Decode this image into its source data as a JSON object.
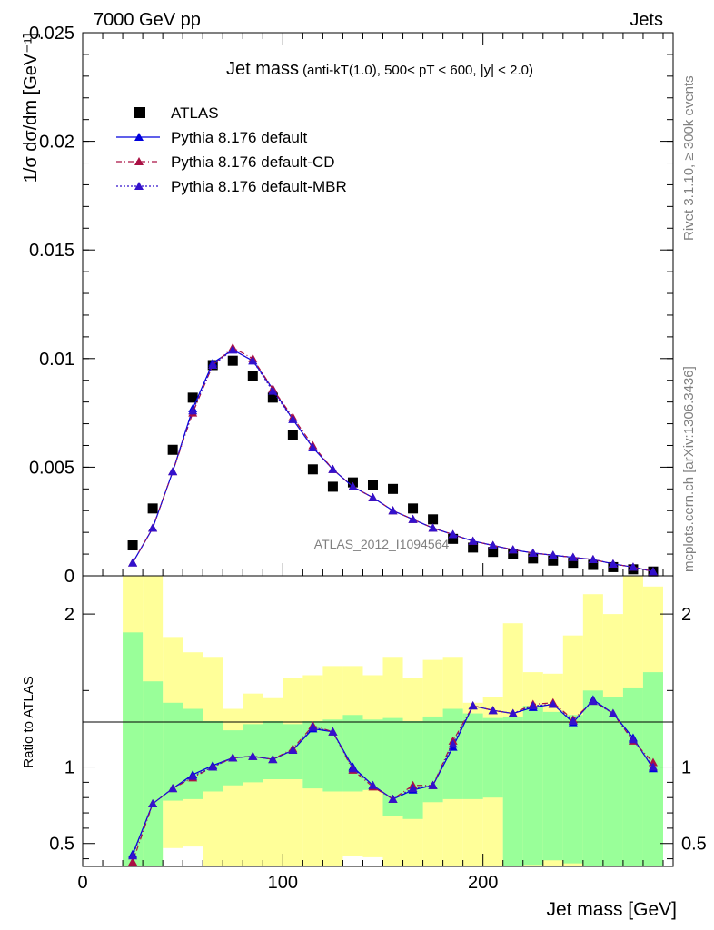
{
  "header": {
    "left": "7000 GeV pp",
    "right": "Jets"
  },
  "side_labels": {
    "rivet": "Rivet 3.1.10, ≥ 300k events",
    "mcplots": "mcplots.cern.ch [arXiv:1306.3436]"
  },
  "watermark": "ATLAS_2012_I1094564",
  "chart_data": [
    {
      "type": "scatter",
      "title": "Jet mass",
      "title_detail": "(anti-kT(1.0), 500< pT < 600, |y| < 2.0)",
      "xlabel": "Jet mass [GeV]",
      "ylabel": "1/σ dσ/dm [GeV⁻¹]",
      "xlim": [
        0,
        295
      ],
      "ylim": [
        0,
        0.025
      ],
      "yticks": [
        0,
        0.005,
        0.01,
        0.015,
        0.02,
        0.025
      ],
      "ytick_labels": [
        "0",
        "0.005",
        "0.01",
        "0.015",
        "0.02",
        "0.025"
      ],
      "legend_position": "top-left",
      "x": [
        25,
        35,
        45,
        55,
        65,
        75,
        85,
        95,
        105,
        115,
        125,
        135,
        145,
        155,
        165,
        175,
        185,
        195,
        205,
        215,
        225,
        235,
        245,
        255,
        265,
        275,
        285
      ],
      "series": [
        {
          "name": "ATLAS",
          "color": "#000000",
          "marker": "square",
          "values": [
            0.0014,
            0.0031,
            0.0058,
            0.0082,
            0.0097,
            0.0099,
            0.0092,
            0.0082,
            0.0065,
            0.0049,
            0.0041,
            0.0043,
            0.0042,
            0.004,
            0.0031,
            0.0026,
            0.0017,
            0.0013,
            0.0011,
            0.001,
            0.0008,
            0.0007,
            0.0006,
            0.0005,
            0.0004,
            0.0003,
            0.0002
          ]
        },
        {
          "name": "Pythia 8.176 default",
          "color": "#0000dd",
          "marker": "triangle",
          "dash": "solid",
          "values": [
            0.0006,
            0.0022,
            0.0048,
            0.0077,
            0.0098,
            0.0104,
            0.0099,
            0.0086,
            0.0072,
            0.0059,
            0.0049,
            0.0041,
            0.0036,
            0.003,
            0.0026,
            0.0022,
            0.0019,
            0.0016,
            0.0014,
            0.0012,
            0.00105,
            0.00095,
            0.00085,
            0.00075,
            0.00055,
            0.0004,
            0.0002
          ]
        },
        {
          "name": "Pythia 8.176 default-CD",
          "color": "#aa1144",
          "marker": "triangle",
          "dash": "dashdot",
          "values": [
            0.0006,
            0.0022,
            0.0048,
            0.0075,
            0.0097,
            0.0105,
            0.01,
            0.0086,
            0.0073,
            0.006,
            0.0049,
            0.0041,
            0.0036,
            0.003,
            0.0026,
            0.0022,
            0.0019,
            0.0016,
            0.0014,
            0.0012,
            0.00105,
            0.00095,
            0.00085,
            0.00075,
            0.00055,
            0.0004,
            0.0002
          ]
        },
        {
          "name": "Pythia 8.176 default-MBR",
          "color": "#3311cc",
          "marker": "triangle",
          "dash": "dotted",
          "values": [
            0.0006,
            0.0022,
            0.0048,
            0.0076,
            0.0097,
            0.0104,
            0.0099,
            0.0085,
            0.0072,
            0.0059,
            0.0049,
            0.0041,
            0.0036,
            0.003,
            0.0026,
            0.0022,
            0.0019,
            0.0016,
            0.0014,
            0.0012,
            0.00105,
            0.00095,
            0.00085,
            0.00075,
            0.00055,
            0.0004,
            0.0002
          ]
        }
      ]
    },
    {
      "type": "line",
      "xlabel": "Jet mass [GeV]",
      "ylabel": "Ratio to ATLAS",
      "xlim": [
        0,
        295
      ],
      "ylim": [
        0.35,
        2.25
      ],
      "xticks": [
        0,
        100,
        200
      ],
      "xtick_labels": [
        "0",
        "100",
        "200"
      ],
      "yticks": [
        0.5,
        1,
        2
      ],
      "ytick_labels": [
        "0.5",
        "1",
        "2"
      ],
      "bin_edges": [
        20,
        30,
        40,
        50,
        60,
        70,
        80,
        90,
        100,
        110,
        120,
        130,
        140,
        150,
        160,
        170,
        180,
        190,
        200,
        210,
        220,
        230,
        240,
        250,
        260,
        270,
        280,
        290
      ],
      "band_inner": {
        "color": "#99ff99",
        "lo": [
          0.35,
          0.35,
          0.78,
          0.79,
          0.84,
          0.88,
          0.9,
          0.92,
          0.92,
          0.86,
          0.84,
          0.84,
          0.85,
          0.68,
          0.66,
          0.77,
          0.79,
          0.79,
          0.8,
          0.35,
          0.36,
          0.39,
          0.37,
          0.35,
          0.35,
          0.35,
          0.35
        ],
        "hi": [
          1.88,
          1.56,
          1.42,
          1.38,
          1.3,
          1.24,
          1.28,
          1.3,
          1.28,
          1.3,
          1.31,
          1.34,
          1.31,
          1.32,
          1.3,
          1.33,
          1.38,
          1.35,
          1.32,
          1.33,
          1.4,
          1.36,
          1.34,
          1.5,
          1.46,
          1.52,
          1.62
        ]
      },
      "band_outer": {
        "color": "#ffff99",
        "lo": [
          0.35,
          0.35,
          0.47,
          0.48,
          0.35,
          0.35,
          0.35,
          0.35,
          0.35,
          0.35,
          0.35,
          0.42,
          0.41,
          0.35,
          0.35,
          0.35,
          0.35,
          0.35,
          0.35,
          0.35,
          0.35,
          0.35,
          0.35,
          0.35,
          0.35,
          0.35,
          0.35
        ],
        "hi": [
          2.25,
          2.25,
          1.85,
          1.75,
          1.72,
          1.38,
          1.48,
          1.45,
          1.58,
          1.6,
          1.66,
          1.66,
          1.6,
          1.72,
          1.58,
          1.7,
          1.72,
          1.42,
          1.46,
          1.94,
          1.62,
          1.61,
          1.86,
          2.13,
          2.0,
          2.25,
          2.18
        ]
      },
      "reference": 1,
      "series": [
        {
          "name": "Pythia 8.176 default",
          "color": "#0000dd",
          "marker": "triangle",
          "dash": "solid",
          "values": [
            0.43,
            0.76,
            0.86,
            0.95,
            1.01,
            1.06,
            1.07,
            1.05,
            1.11,
            1.25,
            1.23,
            1.0,
            0.88,
            0.79,
            0.85,
            0.88,
            1.13,
            1.4,
            1.37,
            1.35,
            1.39,
            1.41,
            1.29,
            1.44,
            1.35,
            1.19,
            0.99
          ]
        },
        {
          "name": "Pythia 8.176 default-CD",
          "color": "#aa1144",
          "marker": "triangle",
          "dash": "dashdot",
          "values": [
            0.38,
            0.76,
            0.86,
            0.93,
            1.0,
            1.06,
            1.07,
            1.05,
            1.12,
            1.27,
            1.23,
            0.98,
            0.87,
            0.79,
            0.88,
            0.88,
            1.17,
            1.4,
            1.37,
            1.35,
            1.41,
            1.42,
            1.31,
            1.43,
            1.35,
            1.17,
            1.03
          ]
        },
        {
          "name": "Pythia 8.176 default-MBR",
          "color": "#3311cc",
          "marker": "triangle",
          "dash": "dotted",
          "values": [
            0.42,
            0.76,
            0.86,
            0.94,
            1.0,
            1.06,
            1.07,
            1.05,
            1.11,
            1.26,
            1.23,
            0.99,
            0.88,
            0.79,
            0.86,
            0.88,
            1.15,
            1.4,
            1.37,
            1.35,
            1.4,
            1.41,
            1.3,
            1.43,
            1.35,
            1.18,
            1.0
          ]
        }
      ]
    }
  ]
}
